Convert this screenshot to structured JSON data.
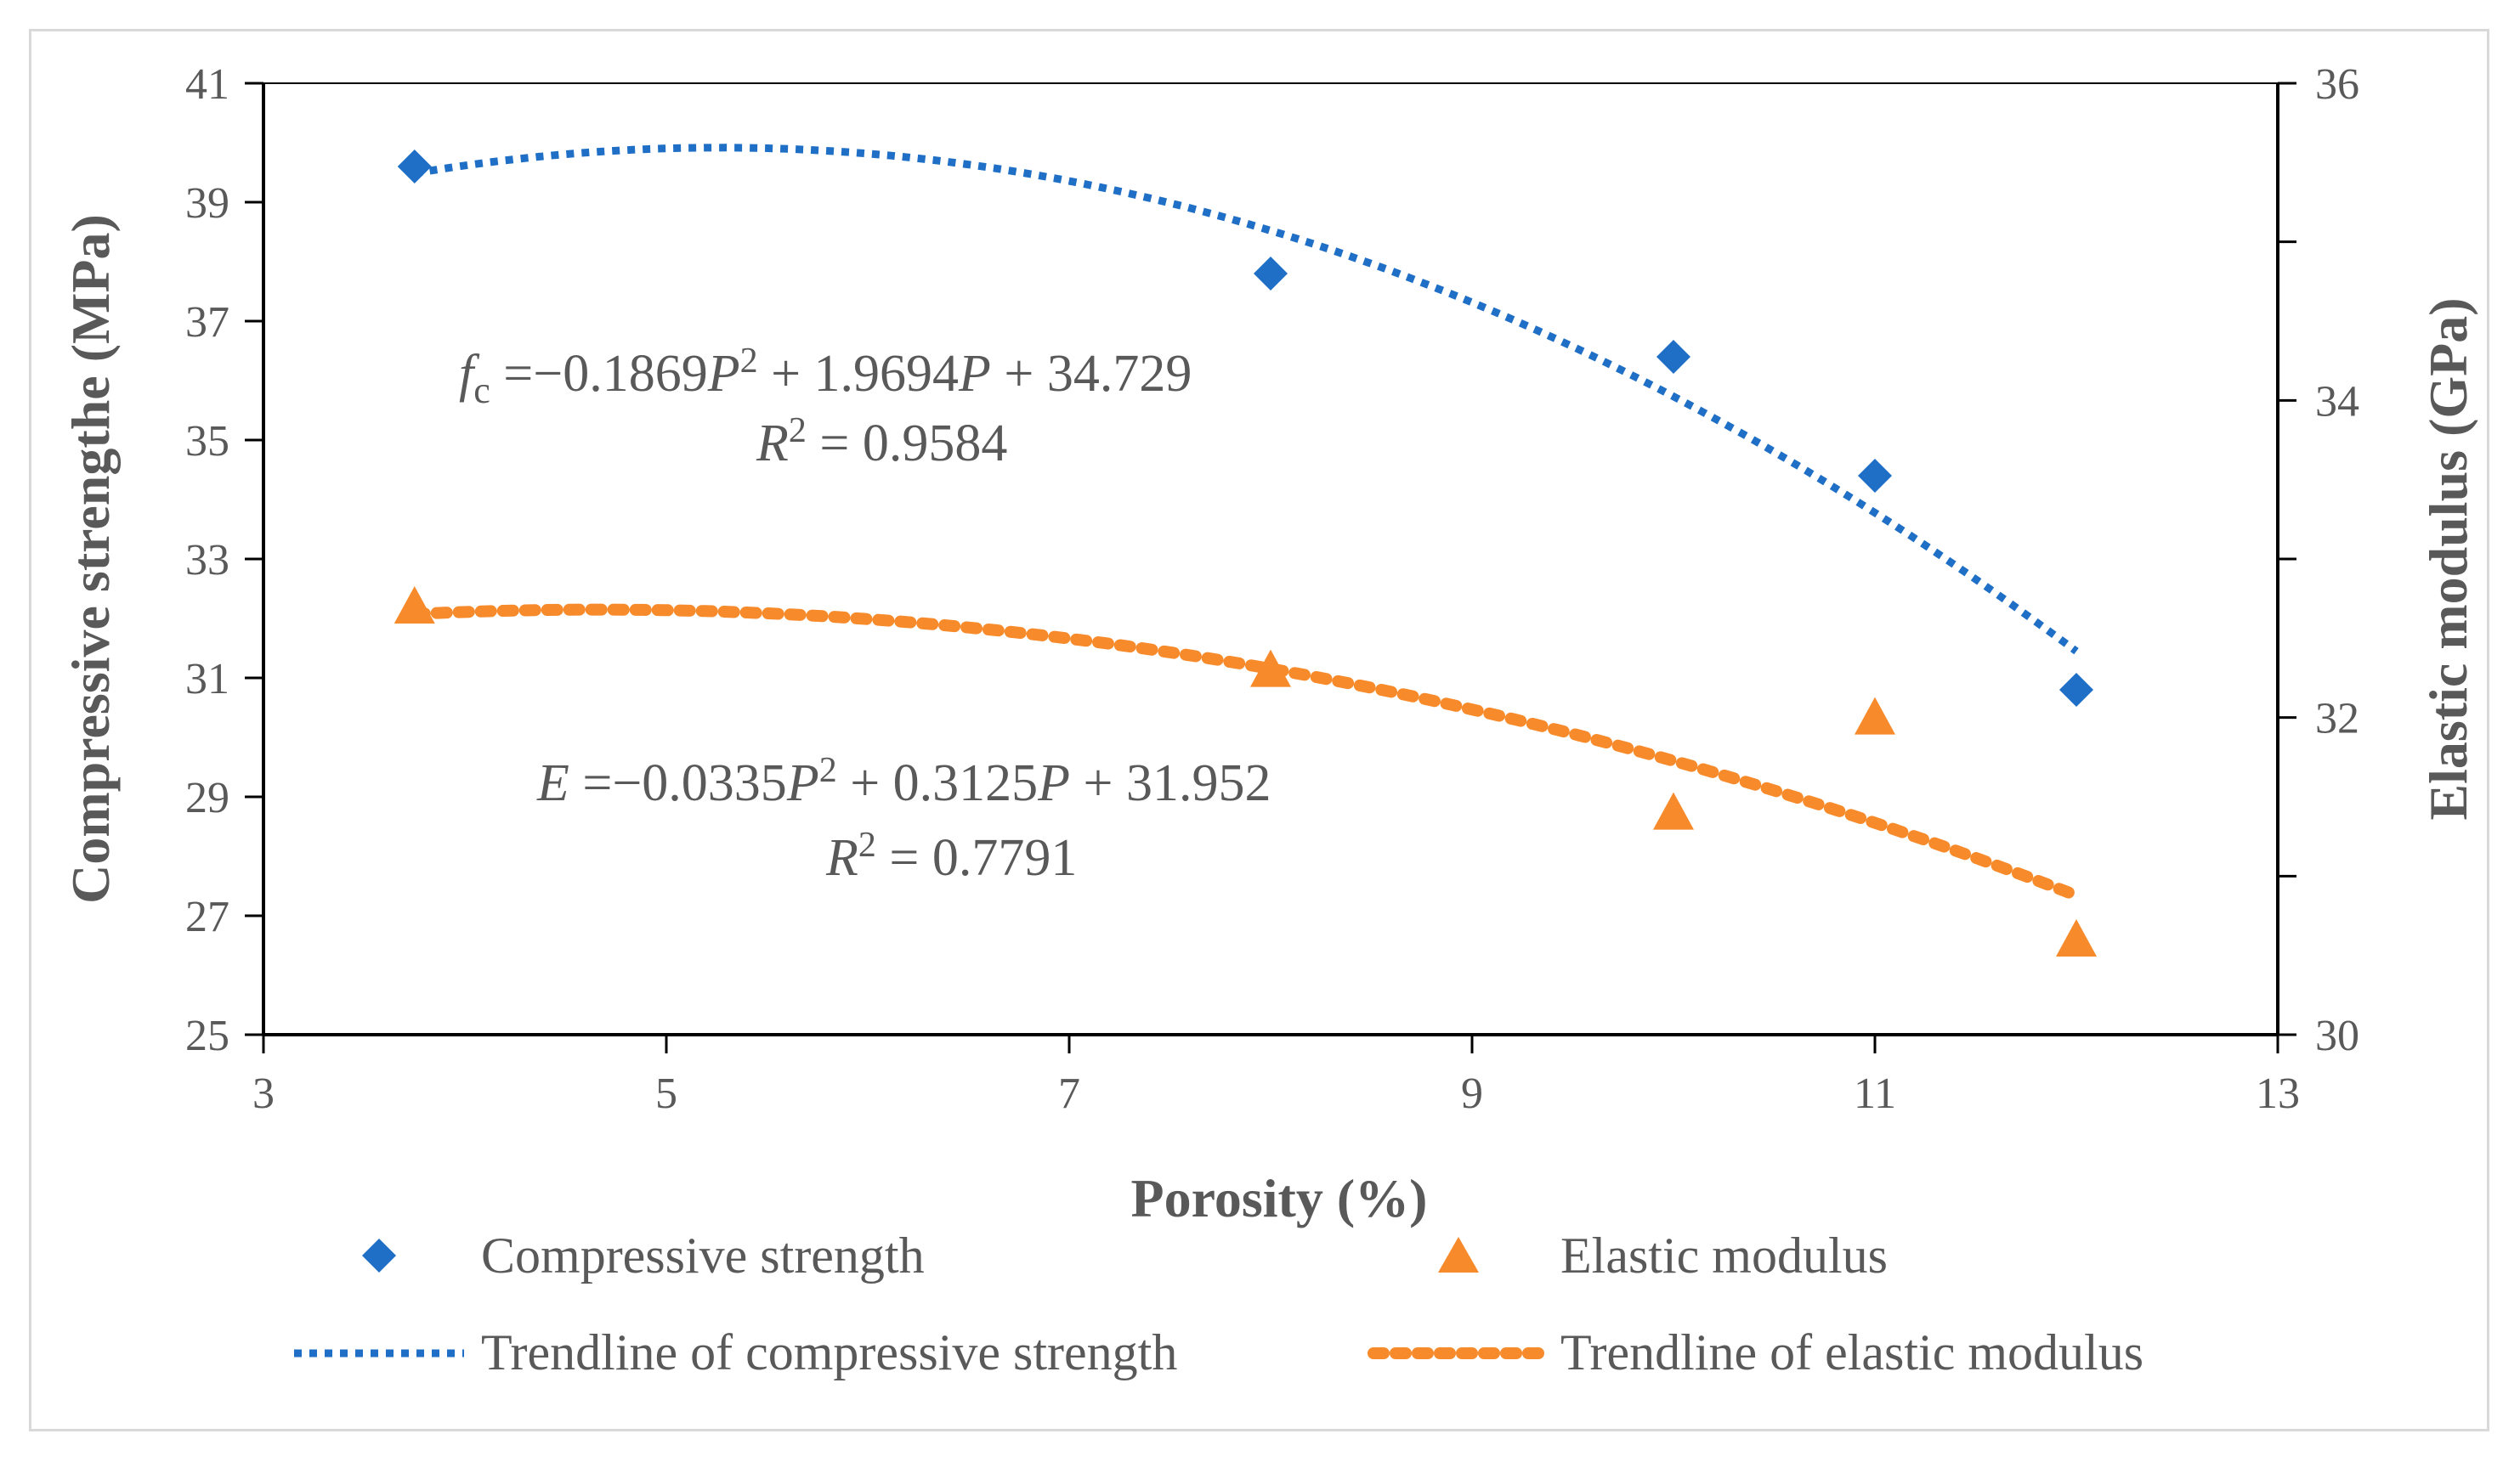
{
  "chart_data": {
    "type": "scatter",
    "x": [
      3.75,
      8.0,
      10.0,
      11.0,
      12.0
    ],
    "series": [
      {
        "name": "Compressive strength",
        "axis": "left",
        "marker": "diamond",
        "color": "#1f6fc6",
        "values": [
          39.6,
          37.8,
          36.4,
          34.4,
          30.8
        ]
      },
      {
        "name": "Elastic modulus",
        "axis": "right",
        "marker": "triangle",
        "color": "#f78a2a",
        "values": [
          32.7,
          32.3,
          31.4,
          32.0,
          30.6
        ]
      }
    ],
    "trendlines": [
      {
        "name": "Trendline of compressive strength",
        "axis": "left",
        "color": "#1f6fc6",
        "coefficients": [
          -0.1869,
          1.9694,
          34.729
        ],
        "x_range": [
          3.75,
          12.0
        ]
      },
      {
        "name": "Trendline of elastic modulus",
        "axis": "right",
        "color": "#f78a2a",
        "coefficients": [
          -0.0335,
          0.3125,
          31.952
        ],
        "x_range": [
          3.75,
          12.0
        ]
      }
    ],
    "equations": {
      "fc": {
        "lhs_main": "f",
        "lhs_sub": "c",
        "rest": " =−0.1869",
        "p1": "P",
        "sq": "2",
        "mid": " + 1.9694",
        "p2": "P",
        "end": " + 34.729",
        "r_label": "R",
        "r_sq": "2",
        "r_val": " = 0.9584"
      },
      "e": {
        "lhs_main": "E",
        "rest": " =−0.0335",
        "p1": "P",
        "sq": "2",
        "mid": " + 0.3125",
        "p2": "P",
        "end": " + 31.952",
        "r_label": "R",
        "r_sq": "2",
        "r_val": " = 0.7791"
      }
    },
    "xlabel": "Porosity (%)",
    "ylabel": "Compressive strengthe (MPa)",
    "y2label": "Elastic modulus (GPa)",
    "xlim": [
      3,
      13
    ],
    "ylim": [
      25,
      41
    ],
    "y2lim": [
      30,
      36
    ],
    "xticks": [
      "3",
      "5",
      "7",
      "9",
      "11",
      "13"
    ],
    "yticks": [
      "25",
      "27",
      "29",
      "31",
      "33",
      "35",
      "37",
      "39",
      "41"
    ],
    "y2ticks": [
      "30",
      "32",
      "34",
      "36"
    ],
    "legend": [
      "Compressive strength",
      "Elastic modulus",
      "Trendline of compressive strength",
      "Trendline of elastic modulus"
    ],
    "legend_position": "bottom"
  }
}
